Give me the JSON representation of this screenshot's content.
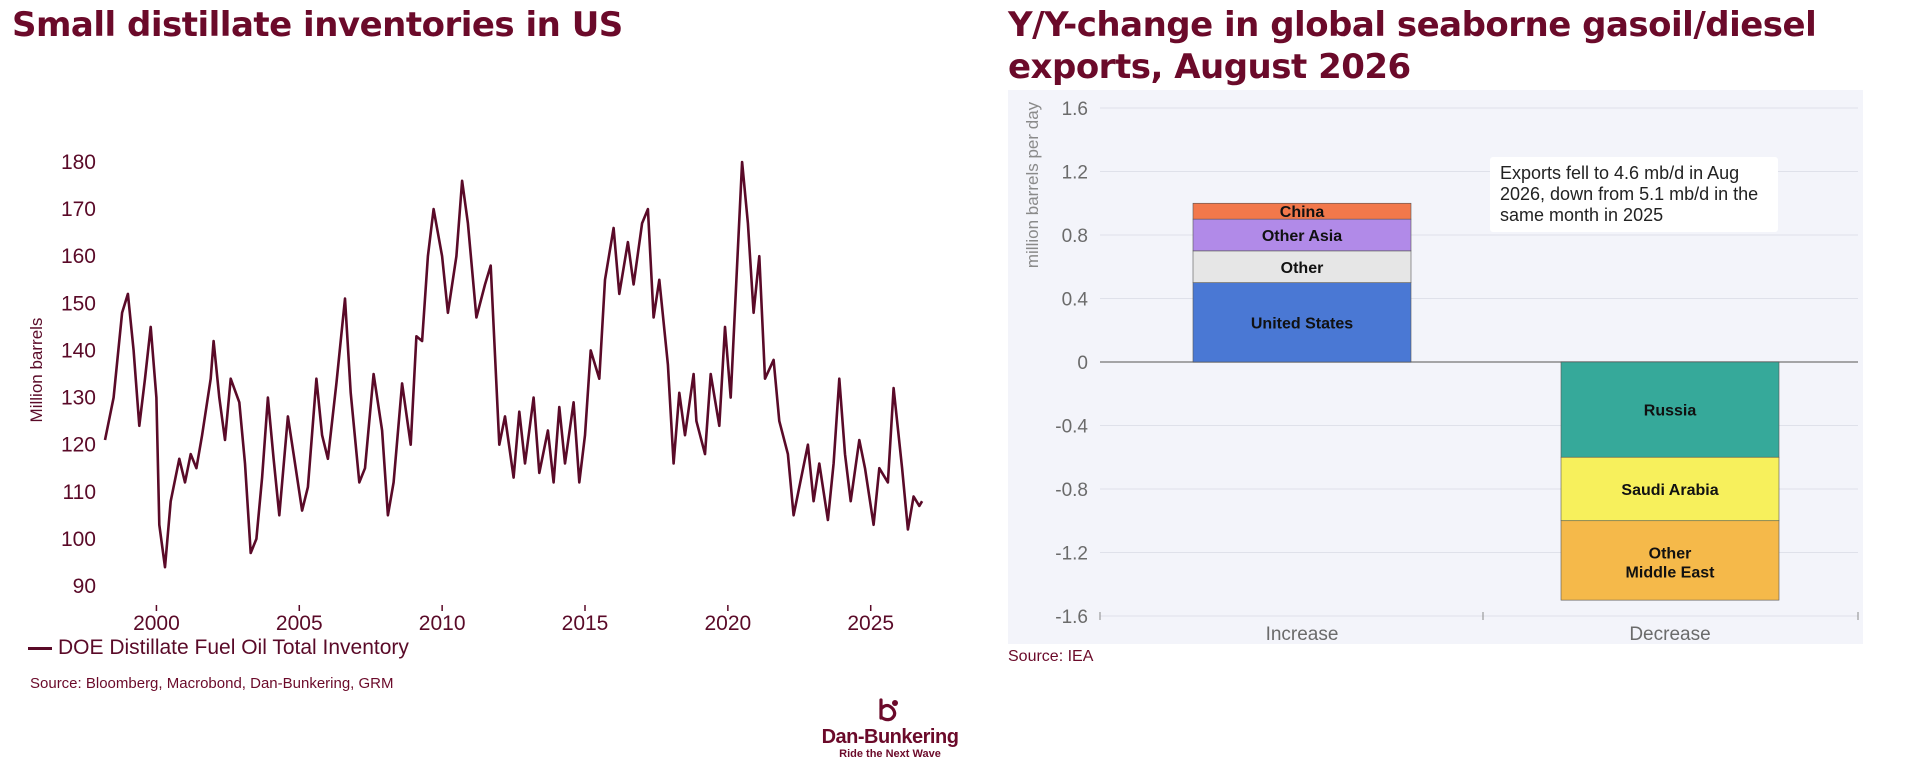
{
  "left_chart": {
    "title": "Small distillate inventories in US",
    "legend": "DOE Distillate Fuel Oil Total Inventory",
    "source": "Source: Bloomberg, Macrobond, Dan-Bunkering, GRM"
  },
  "right_chart": {
    "title": "Y/Y-change in global seaborne gasoil/diesel exports, August 2026",
    "annotation": "Exports fell to 4.6 mb/d in Aug 2026, down from 5.1 mb/d in the same month in 2025",
    "source": "Source: IEA"
  },
  "logo": {
    "name": "Dan-Bunkering",
    "tagline": "Ride the Next Wave"
  },
  "colors": {
    "brand": "#6b0a2a",
    "us": "#4a78d4",
    "other": "#e6e6e6",
    "other_asia": "#b18ae8",
    "china": "#f2784b",
    "russia": "#36a99a",
    "saudi": "#f7f05c",
    "other_me": "#f5b94a"
  },
  "chart_data": [
    {
      "type": "line",
      "title": "Small distillate inventories in US",
      "xlabel": "",
      "ylabel": "Million barrels",
      "xlim": [
        1998.2,
        2026.9
      ],
      "ylim": [
        90,
        180
      ],
      "xticks": [
        2000,
        2005,
        2010,
        2015,
        2020,
        2025
      ],
      "yticks": [
        180,
        170,
        160,
        150,
        140,
        130,
        120,
        110,
        100,
        90
      ],
      "legend": "bottom-left",
      "grid": false,
      "series": [
        {
          "name": "DOE Distillate Fuel Oil Total Inventory",
          "color": "#5a0a28",
          "points": [
            [
              1998.2,
              121
            ],
            [
              1998.5,
              130
            ],
            [
              1998.8,
              148
            ],
            [
              1999.0,
              152
            ],
            [
              1999.2,
              140
            ],
            [
              1999.4,
              124
            ],
            [
              1999.6,
              134
            ],
            [
              1999.8,
              145
            ],
            [
              2000.0,
              130
            ],
            [
              2000.1,
              103
            ],
            [
              2000.3,
              94
            ],
            [
              2000.5,
              108
            ],
            [
              2000.8,
              117
            ],
            [
              2001.0,
              112
            ],
            [
              2001.2,
              118
            ],
            [
              2001.4,
              115
            ],
            [
              2001.6,
              122
            ],
            [
              2001.9,
              134
            ],
            [
              2002.0,
              142
            ],
            [
              2002.2,
              130
            ],
            [
              2002.4,
              121
            ],
            [
              2002.6,
              134
            ],
            [
              2002.9,
              129
            ],
            [
              2003.1,
              116
            ],
            [
              2003.3,
              97
            ],
            [
              2003.5,
              100
            ],
            [
              2003.7,
              113
            ],
            [
              2003.9,
              130
            ],
            [
              2004.1,
              117
            ],
            [
              2004.3,
              105
            ],
            [
              2004.6,
              126
            ],
            [
              2004.8,
              118
            ],
            [
              2005.1,
              106
            ],
            [
              2005.3,
              111
            ],
            [
              2005.6,
              134
            ],
            [
              2005.8,
              122
            ],
            [
              2006.0,
              117
            ],
            [
              2006.3,
              133
            ],
            [
              2006.6,
              151
            ],
            [
              2006.8,
              131
            ],
            [
              2007.1,
              112
            ],
            [
              2007.3,
              115
            ],
            [
              2007.6,
              135
            ],
            [
              2007.9,
              123
            ],
            [
              2008.1,
              105
            ],
            [
              2008.3,
              112
            ],
            [
              2008.6,
              133
            ],
            [
              2008.9,
              120
            ],
            [
              2009.1,
              143
            ],
            [
              2009.3,
              142
            ],
            [
              2009.5,
              160
            ],
            [
              2009.7,
              170
            ],
            [
              2010.0,
              160
            ],
            [
              2010.2,
              148
            ],
            [
              2010.5,
              160
            ],
            [
              2010.7,
              176
            ],
            [
              2010.9,
              167
            ],
            [
              2011.2,
              147
            ],
            [
              2011.5,
              154
            ],
            [
              2011.7,
              158
            ],
            [
              2012.0,
              120
            ],
            [
              2012.2,
              126
            ],
            [
              2012.5,
              113
            ],
            [
              2012.7,
              127
            ],
            [
              2012.9,
              116
            ],
            [
              2013.2,
              130
            ],
            [
              2013.4,
              114
            ],
            [
              2013.7,
              123
            ],
            [
              2013.9,
              112
            ],
            [
              2014.1,
              128
            ],
            [
              2014.3,
              116
            ],
            [
              2014.6,
              129
            ],
            [
              2014.8,
              112
            ],
            [
              2015.0,
              122
            ],
            [
              2015.2,
              140
            ],
            [
              2015.5,
              134
            ],
            [
              2015.7,
              155
            ],
            [
              2016.0,
              166
            ],
            [
              2016.2,
              152
            ],
            [
              2016.5,
              163
            ],
            [
              2016.7,
              154
            ],
            [
              2017.0,
              167
            ],
            [
              2017.2,
              170
            ],
            [
              2017.4,
              147
            ],
            [
              2017.6,
              155
            ],
            [
              2017.9,
              137
            ],
            [
              2018.1,
              116
            ],
            [
              2018.3,
              131
            ],
            [
              2018.5,
              122
            ],
            [
              2018.8,
              135
            ],
            [
              2018.9,
              125
            ],
            [
              2019.2,
              118
            ],
            [
              2019.4,
              135
            ],
            [
              2019.7,
              124
            ],
            [
              2019.9,
              145
            ],
            [
              2020.1,
              130
            ],
            [
              2020.3,
              155
            ],
            [
              2020.5,
              180
            ],
            [
              2020.7,
              167
            ],
            [
              2020.9,
              148
            ],
            [
              2021.1,
              160
            ],
            [
              2021.3,
              134
            ],
            [
              2021.6,
              138
            ],
            [
              2021.8,
              125
            ],
            [
              2022.1,
              118
            ],
            [
              2022.3,
              105
            ],
            [
              2022.5,
              111
            ],
            [
              2022.8,
              120
            ],
            [
              2023.0,
              108
            ],
            [
              2023.2,
              116
            ],
            [
              2023.5,
              104
            ],
            [
              2023.7,
              116
            ],
            [
              2023.9,
              134
            ],
            [
              2024.1,
              118
            ],
            [
              2024.3,
              108
            ],
            [
              2024.6,
              121
            ],
            [
              2024.8,
              115
            ],
            [
              2025.1,
              103
            ],
            [
              2025.3,
              115
            ],
            [
              2025.6,
              112
            ],
            [
              2025.8,
              132
            ],
            [
              2026.1,
              115
            ],
            [
              2026.3,
              102
            ],
            [
              2026.5,
              109
            ],
            [
              2026.7,
              107
            ],
            [
              2026.8,
              108
            ]
          ]
        }
      ]
    },
    {
      "type": "bar",
      "stacked": true,
      "title": "Y/Y-change in global seaborne gasoil/diesel exports, August 2026",
      "xlabel": "",
      "ylabel": "million barrels per day",
      "ylim": [
        -1.6,
        1.6
      ],
      "yticks": [
        "1.6",
        "1.2",
        "0.8",
        "0.4",
        "0",
        "-0.4",
        "-0.8",
        "-1.2",
        "-1.6"
      ],
      "categories": [
        "Increase",
        "Decrease"
      ],
      "grid": true,
      "series": [
        {
          "name": "United States",
          "category": "Increase",
          "from": 0,
          "to": 0.5,
          "color": "#4a78d4"
        },
        {
          "name": "Other",
          "category": "Increase",
          "from": 0.5,
          "to": 0.7,
          "color": "#e6e6e6"
        },
        {
          "name": "Other Asia",
          "category": "Increase",
          "from": 0.7,
          "to": 0.9,
          "color": "#b18ae8"
        },
        {
          "name": "China",
          "category": "Increase",
          "from": 0.9,
          "to": 1.0,
          "color": "#f2784b"
        },
        {
          "name": "Russia",
          "category": "Decrease",
          "from": 0,
          "to": -0.6,
          "color": "#36a99a"
        },
        {
          "name": "Saudi Arabia",
          "category": "Decrease",
          "from": -0.6,
          "to": -1.0,
          "color": "#f7f05c"
        },
        {
          "name": "Other Middle East",
          "category": "Decrease",
          "from": -1.0,
          "to": -1.5,
          "color": "#f5b94a"
        }
      ]
    }
  ]
}
